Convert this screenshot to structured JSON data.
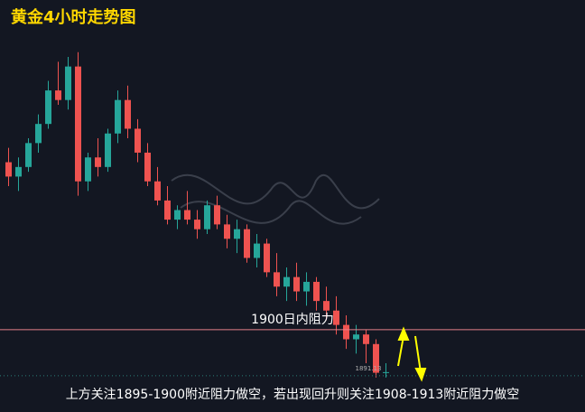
{
  "chart_data": {
    "type": "candlestick",
    "title": "黄金4小时走势图",
    "note": "上方关注1895-1900附近阻力做空，若出现回升则关注1908-1913附近阻力做空",
    "ylim": [
      1882.8,
      1968.9
    ],
    "up_color": "#26a69a",
    "down_color": "#ef5350",
    "resistance": {
      "value": 1900,
      "label": "1900日内阻力",
      "color": "#e57f8a"
    },
    "last_price": 1891.13,
    "open": [
      1935,
      1932,
      1934,
      1939,
      1943,
      1950,
      1948,
      1955,
      1931,
      1936,
      1934,
      1941,
      1948,
      1942,
      1937,
      1931,
      1927,
      1923,
      1925,
      1923,
      1921,
      1926,
      1922,
      1919,
      1921,
      1915,
      1918,
      1912,
      1909,
      1911,
      1908,
      1910,
      1906,
      1904,
      1901,
      1898,
      1899,
      1897,
      1891
    ],
    "high": [
      1938,
      1936,
      1940,
      1945,
      1952,
      1956,
      1957,
      1958,
      1937,
      1940,
      1942,
      1950,
      1951,
      1944,
      1939,
      1934,
      1930,
      1926,
      1929,
      1925,
      1927,
      1928,
      1924,
      1923,
      1922,
      1920,
      1919,
      1916,
      1913,
      1914,
      1912,
      1911,
      1909,
      1907,
      1903,
      1901,
      1900,
      1898,
      1893
    ],
    "low": [
      1930,
      1929,
      1933,
      1937,
      1942,
      1947,
      1946,
      1928,
      1929,
      1932,
      1933,
      1939,
      1940,
      1935,
      1930,
      1926,
      1922,
      1921,
      1922,
      1919,
      1920,
      1921,
      1917,
      1916,
      1914,
      1913,
      1911,
      1907,
      1906,
      1906,
      1905,
      1904,
      1902,
      1899,
      1896,
      1895,
      1893,
      1890,
      1890
    ],
    "close": [
      1932,
      1934,
      1939,
      1943,
      1950,
      1948,
      1955,
      1931,
      1936,
      1934,
      1941,
      1948,
      1942,
      1937,
      1931,
      1927,
      1923,
      1925,
      1923,
      1921,
      1926,
      1922,
      1919,
      1921,
      1915,
      1918,
      1912,
      1909,
      1911,
      1908,
      1910,
      1906,
      1904,
      1901,
      1898,
      1899,
      1897,
      1891,
      1891.13
    ]
  }
}
